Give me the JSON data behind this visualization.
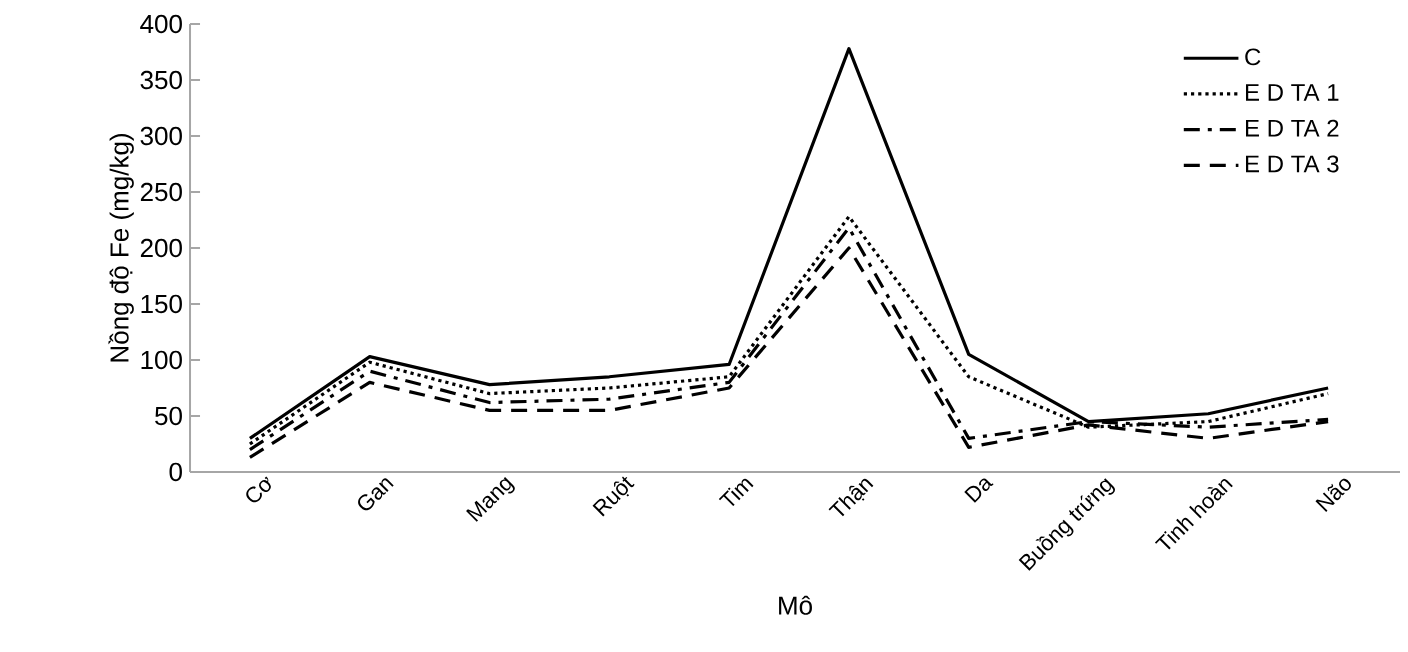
{
  "chart_data": {
    "type": "line",
    "xlabel": "Mô",
    "ylabel": "Nồng độ Fe  (mg/kg)",
    "categories": [
      "Cơ",
      "Gan",
      "Mang",
      "Ruột",
      "Tim",
      "Thận",
      "Da",
      "Buồng trứng",
      "Tinh hoàn",
      "Não"
    ],
    "series": [
      {
        "name": "C",
        "color": "#000000",
        "line_style": "solid",
        "values": [
          30,
          103,
          78,
          85,
          96,
          378,
          105,
          45,
          52,
          75
        ]
      },
      {
        "name": "E D TA 1",
        "color": "#000000",
        "line_style": "dotted",
        "values": [
          25,
          98,
          70,
          75,
          85,
          228,
          85,
          40,
          45,
          70
        ]
      },
      {
        "name": "E D TA 2",
        "color": "#000000",
        "line_style": "dashdot",
        "values": [
          20,
          90,
          62,
          65,
          80,
          218,
          30,
          45,
          40,
          47
        ]
      },
      {
        "name": "E D TA 3",
        "color": "#000000",
        "line_style": "dashed",
        "values": [
          13,
          80,
          55,
          55,
          75,
          200,
          22,
          42,
          30,
          45
        ]
      }
    ],
    "ylim": [
      0,
      400
    ],
    "yticks": [
      0,
      50,
      100,
      150,
      200,
      250,
      300,
      350,
      400
    ],
    "grid": false,
    "legend": "top right",
    "marker": "none"
  }
}
